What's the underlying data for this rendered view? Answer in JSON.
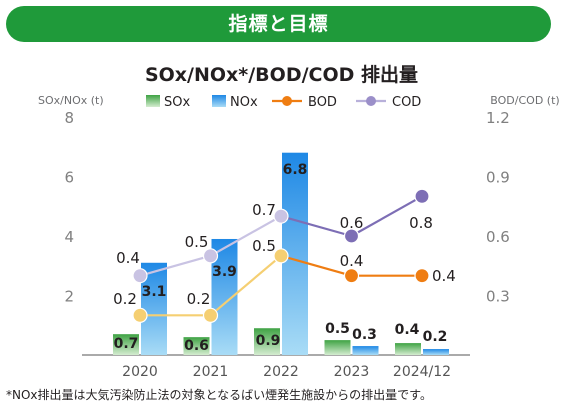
{
  "banner": {
    "title": "指標と目標"
  },
  "chart_data": {
    "type": "bar+line",
    "title": "SOx/NOx*/BOD/COD 排出量",
    "categories": [
      "2020",
      "2021",
      "2022",
      "2023",
      "2024/12"
    ],
    "left_axis": {
      "label": "SOx/NOx (t)",
      "ylim": [
        0,
        8
      ],
      "ticks": [
        "2",
        "4",
        "6",
        "8"
      ]
    },
    "right_axis": {
      "label": "BOD/COD (t)",
      "ylim": [
        0,
        1.2
      ],
      "ticks": [
        "0.3",
        "0.6",
        "0.9",
        "1.2"
      ]
    },
    "series": [
      {
        "name": "SOx",
        "type": "bar",
        "axis": "left",
        "values": [
          0.7,
          0.6,
          0.9,
          0.5,
          0.4
        ],
        "labels": [
          "0.7",
          "0.6",
          "0.9",
          "0.5",
          "0.4"
        ],
        "color": "#4caf50"
      },
      {
        "name": "NOx",
        "type": "bar",
        "axis": "left",
        "values": [
          3.1,
          3.9,
          6.8,
          0.3,
          0.2
        ],
        "labels": [
          "3.1",
          "3.9",
          "6.8",
          "0.3",
          "0.2"
        ],
        "color": "#1e88e5"
      },
      {
        "name": "BOD",
        "type": "line",
        "axis": "right",
        "values": [
          0.2,
          0.2,
          0.5,
          0.4,
          0.4
        ],
        "labels": [
          "0.2",
          "0.2",
          "0.5",
          "0.4",
          "0.4"
        ],
        "colors": [
          "#f5cf72",
          "#f5cf72",
          "#f5cf72",
          "#ef7d12",
          "#ef7d12"
        ]
      },
      {
        "name": "COD",
        "type": "line",
        "axis": "right",
        "values": [
          0.4,
          0.5,
          0.7,
          0.6,
          0.8
        ],
        "labels": [
          "0.4",
          "0.5",
          "0.7",
          "0.6",
          "0.8"
        ],
        "colors": [
          "#c9c3e3",
          "#c9c3e3",
          "#c9c3e3",
          "#7d6eb5",
          "#7d6eb5"
        ]
      }
    ],
    "legend_placement": "top",
    "grid": false
  },
  "footnote": "*NOx排出量は大気汚染防止法の対象となるばい煙発生施設からの排出量です。"
}
